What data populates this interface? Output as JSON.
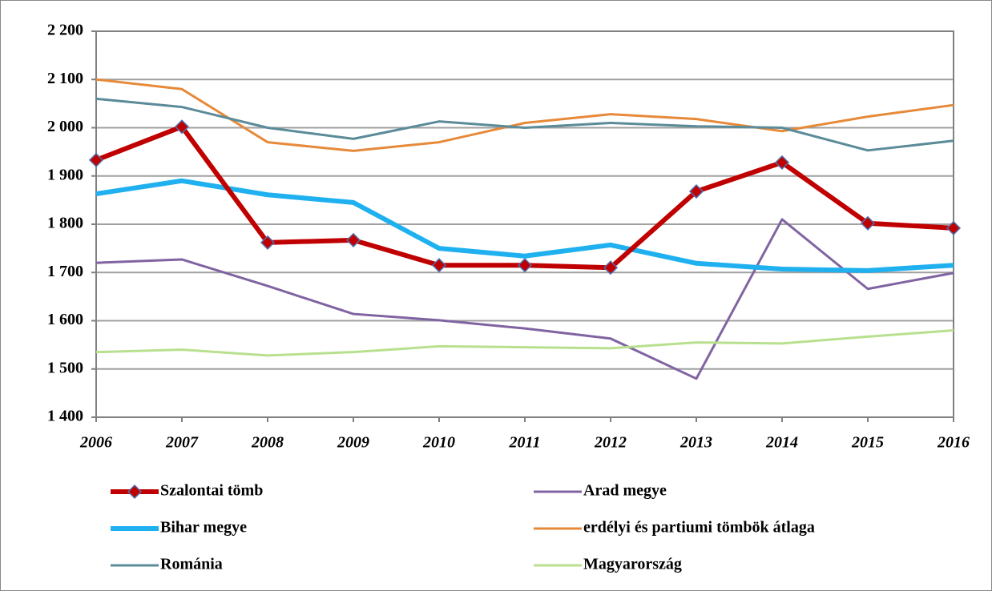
{
  "chart_data": {
    "type": "line",
    "x": [
      2006,
      2007,
      2008,
      2009,
      2010,
      2011,
      2012,
      2013,
      2014,
      2015,
      2016
    ],
    "xlim": [
      2006,
      2016
    ],
    "xticks": [
      2006,
      2007,
      2008,
      2009,
      2010,
      2011,
      2012,
      2013,
      2014,
      2015,
      2016
    ],
    "ylim": [
      1400,
      2200
    ],
    "yticks": [
      {
        "value": 1400,
        "label": "1 400"
      },
      {
        "value": 1500,
        "label": "1 500"
      },
      {
        "value": 1600,
        "label": "1 600"
      },
      {
        "value": 1700,
        "label": "1 700"
      },
      {
        "value": 1800,
        "label": "1 800"
      },
      {
        "value": 1900,
        "label": "1 900"
      },
      {
        "value": 2000,
        "label": "2 000"
      },
      {
        "value": 2100,
        "label": "2 100"
      },
      {
        "value": 2200,
        "label": "2 200"
      }
    ],
    "grid": true,
    "series": [
      {
        "name": "Szalontai tömb",
        "color": "#c00000",
        "line_width": 6,
        "marker": "diamond",
        "values": [
          1933,
          2002,
          1762,
          1767,
          1715,
          1715,
          1710,
          1868,
          1928,
          1802,
          1792
        ]
      },
      {
        "name": "Arad megye",
        "color": "#8064a2",
        "line_width": 3,
        "values": [
          1720,
          1727,
          1672,
          1614,
          1601,
          1584,
          1563,
          1480,
          1810,
          1666,
          1699
        ]
      },
      {
        "name": "Bihar megye",
        "color": "#1fb0f0",
        "line_width": 6,
        "values": [
          1863,
          1890,
          1861,
          1845,
          1750,
          1734,
          1757,
          1719,
          1707,
          1704,
          1715
        ]
      },
      {
        "name": "erdélyi és partiumi tömbök átlaga",
        "color": "#e68a3a",
        "line_width": 3,
        "values": [
          2100,
          2080,
          1970,
          1952,
          1970,
          2010,
          2028,
          2018,
          1993,
          2023,
          2047
        ]
      },
      {
        "name": "Románia",
        "color": "#5b8b99",
        "line_width": 3,
        "values": [
          2060,
          2043,
          2000,
          1977,
          2013,
          2000,
          2010,
          2003,
          2000,
          1953,
          1973
        ]
      },
      {
        "name": "Magyarország",
        "color": "#b8e08e",
        "line_width": 3,
        "values": [
          1535,
          1540,
          1528,
          1535,
          1547,
          1545,
          1543,
          1555,
          1553,
          1567,
          1580
        ]
      }
    ]
  }
}
